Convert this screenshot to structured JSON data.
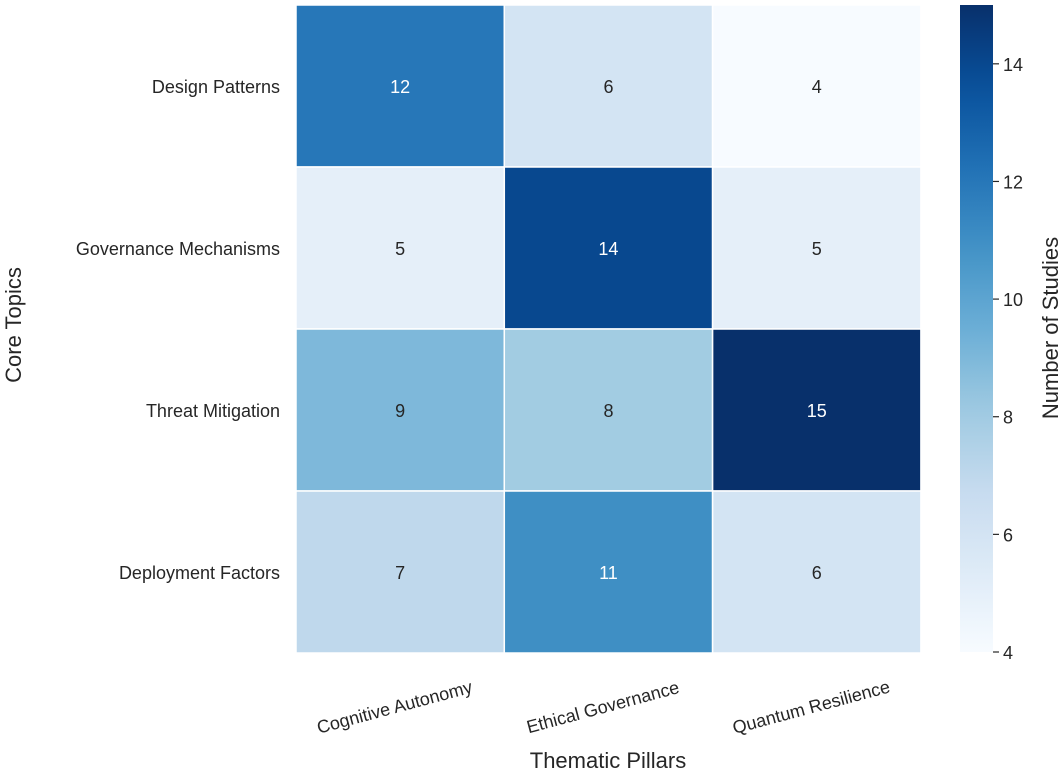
{
  "chart_data": {
    "type": "heatmap",
    "title": "",
    "xlabel": "Thematic Pillars",
    "ylabel": "Core Topics",
    "x_categories": [
      "Cognitive Autonomy",
      "Ethical Governance",
      "Quantum Resilience"
    ],
    "y_categories": [
      "Design Patterns",
      "Governance Mechanisms",
      "Threat Mitigation",
      "Deployment Factors"
    ],
    "values": [
      [
        12,
        6,
        4
      ],
      [
        5,
        14,
        5
      ],
      [
        9,
        8,
        15
      ],
      [
        7,
        11,
        6
      ]
    ],
    "colorbar": {
      "label": "Number of Studies",
      "min": 4,
      "max": 15,
      "ticks": [
        4,
        6,
        8,
        10,
        12,
        14
      ]
    },
    "colormap": "Blues",
    "colors": {
      "low": "#f7fbff",
      "high": "#08306b",
      "text_dark": "#262626",
      "text_light": "#ffffff",
      "grid": "#ffffff"
    },
    "annotations_shown": true
  }
}
